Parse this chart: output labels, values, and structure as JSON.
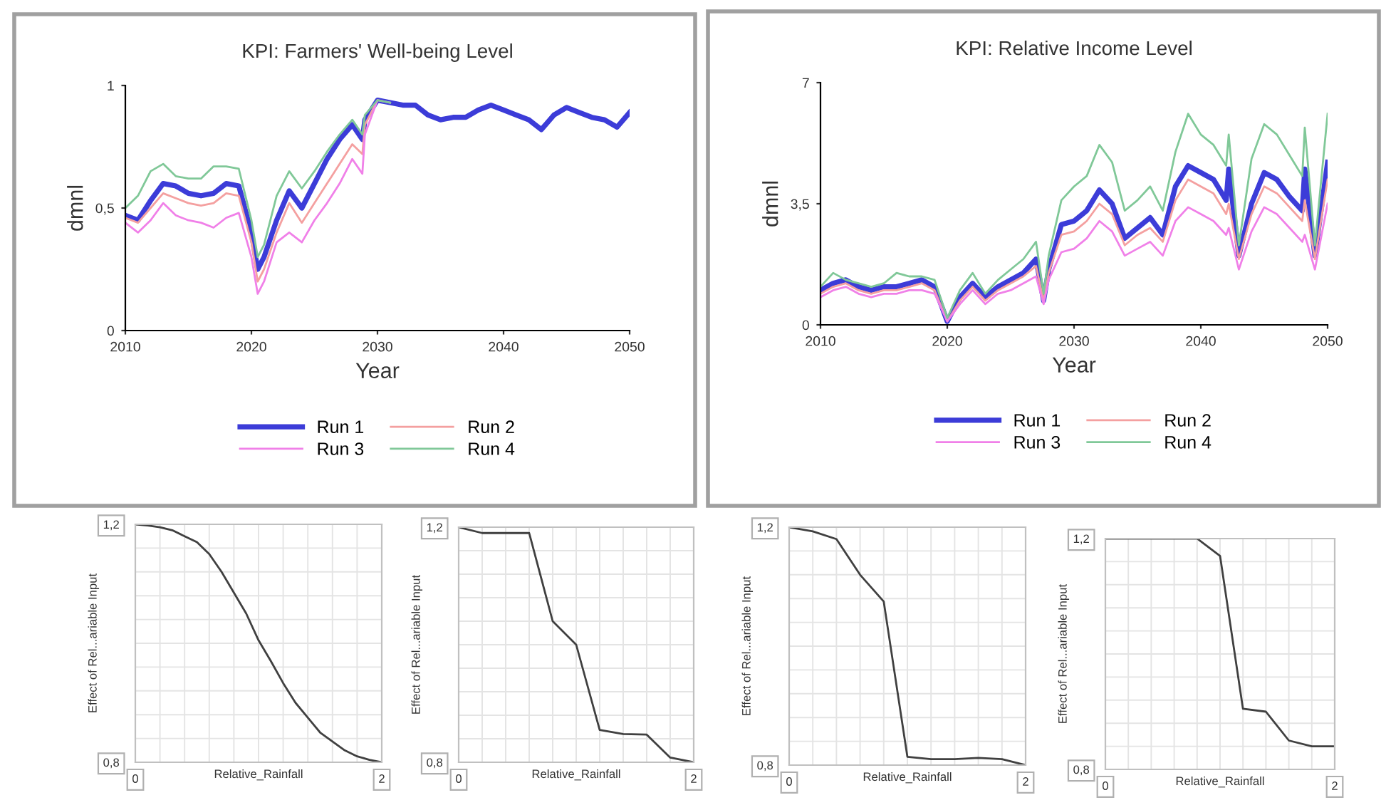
{
  "chart_data": [
    {
      "type": "line",
      "title": "KPI: Farmers' Well-being Level",
      "xlabel": "Year",
      "ylabel": "dmnl",
      "x": [
        2010,
        2011,
        2012,
        2013,
        2014,
        2015,
        2016,
        2017,
        2018,
        2019,
        2020,
        2020.5,
        2021,
        2022,
        2023,
        2024,
        2025,
        2026,
        2027,
        2028,
        2028.8,
        2029,
        2030,
        2031,
        2032,
        2033,
        2034,
        2035,
        2036,
        2037,
        2038,
        2039,
        2040,
        2041,
        2042,
        2043,
        2044,
        2045,
        2046,
        2047,
        2048,
        2049,
        2050
      ],
      "series": [
        {
          "name": "Run 1",
          "color": "#3c3cd8",
          "values": [
            0.47,
            0.45,
            0.53,
            0.6,
            0.59,
            0.56,
            0.55,
            0.56,
            0.6,
            0.59,
            0.4,
            0.25,
            0.3,
            0.45,
            0.57,
            0.5,
            0.6,
            0.7,
            0.78,
            0.84,
            0.78,
            0.86,
            0.94,
            0.93,
            0.92,
            0.92,
            0.88,
            0.86,
            0.87,
            0.87,
            0.9,
            0.92,
            0.9,
            0.88,
            0.86,
            0.82,
            0.88,
            0.91,
            0.89,
            0.87,
            0.86,
            0.83,
            0.89
          ]
        },
        {
          "name": "Run 2",
          "color": "#f4a0a0",
          "values": [
            0.46,
            0.44,
            0.5,
            0.56,
            0.54,
            0.52,
            0.51,
            0.52,
            0.56,
            0.55,
            0.36,
            0.2,
            0.25,
            0.4,
            0.52,
            0.44,
            0.52,
            0.6,
            0.68,
            0.76,
            0.72,
            0.84,
            0.94,
            null,
            null,
            null,
            null,
            null,
            null,
            null,
            null,
            null,
            null,
            null,
            null,
            null,
            null,
            null,
            null,
            null,
            null,
            null,
            null
          ]
        },
        {
          "name": "Run 3",
          "color": "#f080e8",
          "values": [
            0.44,
            0.4,
            0.45,
            0.52,
            0.47,
            0.45,
            0.44,
            0.42,
            0.46,
            0.48,
            0.3,
            0.15,
            0.2,
            0.36,
            0.4,
            0.36,
            0.45,
            0.52,
            0.6,
            0.7,
            0.64,
            0.8,
            0.94,
            0.93,
            null,
            null,
            null,
            null,
            null,
            null,
            null,
            null,
            null,
            null,
            null,
            null,
            null,
            null,
            null,
            null,
            null,
            null,
            null
          ]
        },
        {
          "name": "Run 4",
          "color": "#80c898",
          "values": [
            0.5,
            0.55,
            0.65,
            0.68,
            0.63,
            0.62,
            0.62,
            0.67,
            0.67,
            0.66,
            0.45,
            0.3,
            0.35,
            0.55,
            0.65,
            0.58,
            0.65,
            0.73,
            0.8,
            0.86,
            0.8,
            0.88,
            0.94,
            0.93,
            null,
            null,
            null,
            null,
            null,
            null,
            null,
            null,
            null,
            null,
            null,
            null,
            null,
            null,
            null,
            null,
            null,
            null,
            null
          ]
        }
      ],
      "xlim": [
        2010,
        2050
      ],
      "xticks": [
        2010,
        2020,
        2030,
        2040,
        2050
      ],
      "ylim": [
        0,
        1
      ],
      "yticks": [
        0,
        {
          "value": 0.5,
          "label": "0,5"
        },
        1
      ],
      "legend": "bottom",
      "grid": false
    },
    {
      "type": "line",
      "title": "KPI: Relative Income Level",
      "xlabel": "Year",
      "ylabel": "dmnl",
      "x": [
        2010,
        2011,
        2012,
        2013,
        2014,
        2015,
        2016,
        2017,
        2018,
        2019,
        2020,
        2021,
        2022,
        2023,
        2024,
        2025,
        2026,
        2027,
        2027.6,
        2028,
        2029,
        2030,
        2031,
        2032,
        2033,
        2034,
        2035,
        2036,
        2037,
        2038,
        2039,
        2040,
        2041,
        2042,
        2042.2,
        2043,
        2044,
        2045,
        2046,
        2047,
        2048,
        2048.2,
        2049,
        2050
      ],
      "series": [
        {
          "name": "Run 1",
          "color": "#3c3cd8",
          "values": [
            1.0,
            1.2,
            1.3,
            1.1,
            1.0,
            1.1,
            1.1,
            1.2,
            1.3,
            1.1,
            0.1,
            0.8,
            1.2,
            0.8,
            1.1,
            1.3,
            1.5,
            1.9,
            0.7,
            1.6,
            2.9,
            3.0,
            3.3,
            3.9,
            3.5,
            2.5,
            2.8,
            3.1,
            2.6,
            4.0,
            4.6,
            4.4,
            4.2,
            3.6,
            4.5,
            2.0,
            3.5,
            4.4,
            4.2,
            3.7,
            3.3,
            4.5,
            2.0,
            4.7
          ]
        },
        {
          "name": "Run 2",
          "color": "#f4a0a0",
          "values": [
            0.9,
            1.1,
            1.2,
            1.0,
            0.9,
            1.0,
            1.0,
            1.1,
            1.2,
            1.0,
            0.1,
            0.7,
            1.1,
            0.7,
            1.0,
            1.2,
            1.4,
            1.7,
            0.7,
            1.5,
            2.6,
            2.7,
            3.0,
            3.5,
            3.2,
            2.3,
            2.6,
            2.8,
            2.4,
            3.6,
            4.2,
            4.0,
            3.8,
            3.2,
            3.5,
            1.9,
            3.2,
            4.0,
            3.8,
            3.4,
            3.0,
            3.6,
            1.9,
            4.2
          ]
        },
        {
          "name": "Run 3",
          "color": "#f080e8",
          "values": [
            0.8,
            1.0,
            1.1,
            0.9,
            0.8,
            0.9,
            0.9,
            1.0,
            1.0,
            0.9,
            0.1,
            0.6,
            1.0,
            0.6,
            0.9,
            1.0,
            1.2,
            1.4,
            0.6,
            1.3,
            2.1,
            2.2,
            2.5,
            3.0,
            2.7,
            2.0,
            2.2,
            2.4,
            2.0,
            3.0,
            3.4,
            3.2,
            3.0,
            2.6,
            2.8,
            1.6,
            2.7,
            3.4,
            3.2,
            2.8,
            2.4,
            2.6,
            1.6,
            3.5
          ]
        },
        {
          "name": "Run 4",
          "color": "#80c898",
          "values": [
            1.1,
            1.5,
            1.3,
            1.2,
            1.1,
            1.2,
            1.5,
            1.4,
            1.4,
            1.3,
            0.2,
            1.0,
            1.5,
            0.9,
            1.3,
            1.6,
            1.9,
            2.4,
            0.9,
            2.0,
            3.6,
            4.0,
            4.3,
            5.2,
            4.7,
            3.3,
            3.6,
            4.0,
            3.3,
            5.0,
            6.1,
            5.5,
            5.2,
            4.6,
            5.5,
            2.3,
            4.8,
            5.8,
            5.5,
            4.9,
            4.3,
            5.7,
            2.3,
            6.1
          ]
        }
      ],
      "xlim": [
        2010,
        2050
      ],
      "xticks": [
        2010,
        2020,
        2030,
        2040,
        2050
      ],
      "ylim": [
        0,
        7
      ],
      "yticks": [
        0,
        {
          "value": 3.5,
          "label": "3,5"
        },
        7
      ],
      "legend": "bottom",
      "grid": false
    },
    {
      "type": "line",
      "xlabel": "Relative_Rainfall",
      "ylabel": "Effect of Rel...ariable Input",
      "x": [
        0,
        0.1,
        0.2,
        0.3,
        0.4,
        0.5,
        0.6,
        0.7,
        0.8,
        0.9,
        1.0,
        1.1,
        1.2,
        1.3,
        1.4,
        1.5,
        1.6,
        1.7,
        1.8,
        1.9,
        2.0
      ],
      "series": [
        {
          "color": "#404040",
          "values": [
            1.2,
            1.198,
            1.195,
            1.19,
            1.18,
            1.17,
            1.15,
            1.12,
            1.085,
            1.05,
            1.005,
            0.97,
            0.933,
            0.9,
            0.875,
            0.85,
            0.835,
            0.82,
            0.81,
            0.804,
            0.8
          ]
        }
      ],
      "xlim": [
        0,
        2
      ],
      "xticks": [
        0,
        {
          "value": 0.2,
          "label": null
        },
        {
          "value": 0.4,
          "label": null
        },
        {
          "value": 0.6,
          "label": null
        },
        {
          "value": 0.8,
          "label": null
        },
        {
          "value": 1.0,
          "label": null
        },
        {
          "value": 1.2,
          "label": null
        },
        {
          "value": 1.4,
          "label": null
        },
        {
          "value": 1.6,
          "label": null
        },
        {
          "value": 1.8,
          "label": null
        },
        2
      ],
      "ylim": [
        0.8,
        1.2
      ],
      "yticks": [
        {
          "value": 0.8,
          "label": "0,8"
        },
        {
          "value": 0.84,
          "label": null
        },
        {
          "value": 0.88,
          "label": null
        },
        {
          "value": 0.92,
          "label": null
        },
        {
          "value": 0.96,
          "label": null
        },
        {
          "value": 1.0,
          "label": null
        },
        {
          "value": 1.04,
          "label": null
        },
        {
          "value": 1.08,
          "label": null
        },
        {
          "value": 1.12,
          "label": null
        },
        {
          "value": 1.16,
          "label": null
        },
        {
          "value": 1.2,
          "label": "1,2"
        }
      ],
      "grid": true
    },
    {
      "type": "line",
      "xlabel": "Relative_Rainfall",
      "ylabel": "Effect of Rel...ariable Input",
      "x": [
        0,
        0.2,
        0.4,
        0.6,
        0.8,
        1.0,
        1.2,
        1.4,
        1.6,
        1.8,
        2.0
      ],
      "series": [
        {
          "color": "#404040",
          "values": [
            1.2,
            1.19,
            1.19,
            1.19,
            1.04,
            1.0,
            0.855,
            0.848,
            0.847,
            0.808,
            0.8
          ]
        }
      ],
      "xlim": [
        0,
        2
      ],
      "xticks": [
        0,
        {
          "value": 0.2,
          "label": null
        },
        {
          "value": 0.4,
          "label": null
        },
        {
          "value": 0.6,
          "label": null
        },
        {
          "value": 0.8,
          "label": null
        },
        {
          "value": 1.0,
          "label": null
        },
        {
          "value": 1.2,
          "label": null
        },
        {
          "value": 1.4,
          "label": null
        },
        {
          "value": 1.6,
          "label": null
        },
        {
          "value": 1.8,
          "label": null
        },
        2
      ],
      "ylim": [
        0.8,
        1.2
      ],
      "yticks": [
        {
          "value": 0.8,
          "label": "0,8"
        },
        {
          "value": 0.84,
          "label": null
        },
        {
          "value": 0.88,
          "label": null
        },
        {
          "value": 0.92,
          "label": null
        },
        {
          "value": 0.96,
          "label": null
        },
        {
          "value": 1.0,
          "label": null
        },
        {
          "value": 1.04,
          "label": null
        },
        {
          "value": 1.08,
          "label": null
        },
        {
          "value": 1.12,
          "label": null
        },
        {
          "value": 1.16,
          "label": null
        },
        {
          "value": 1.2,
          "label": "1,2"
        }
      ],
      "grid": true
    },
    {
      "type": "line",
      "xlabel": "Relative_Rainfall",
      "ylabel": "Effect of Rel...ariable Input",
      "x": [
        0,
        0.2,
        0.4,
        0.6,
        0.8,
        1.0,
        1.2,
        1.4,
        1.6,
        1.8,
        2.0
      ],
      "series": [
        {
          "color": "#404040",
          "values": [
            1.2,
            1.193,
            1.18,
            1.12,
            1.075,
            0.814,
            0.81,
            0.81,
            0.812,
            0.81,
            0.8
          ]
        }
      ],
      "xlim": [
        0,
        2
      ],
      "xticks": [
        0,
        {
          "value": 0.2,
          "label": null
        },
        {
          "value": 0.4,
          "label": null
        },
        {
          "value": 0.6,
          "label": null
        },
        {
          "value": 0.8,
          "label": null
        },
        {
          "value": 1.0,
          "label": null
        },
        {
          "value": 1.2,
          "label": null
        },
        {
          "value": 1.4,
          "label": null
        },
        {
          "value": 1.6,
          "label": null
        },
        {
          "value": 1.8,
          "label": null
        },
        2
      ],
      "ylim": [
        0.8,
        1.2
      ],
      "yticks": [
        {
          "value": 0.8,
          "label": "0,8"
        },
        {
          "value": 0.84,
          "label": null
        },
        {
          "value": 0.88,
          "label": null
        },
        {
          "value": 0.92,
          "label": null
        },
        {
          "value": 0.96,
          "label": null
        },
        {
          "value": 1.0,
          "label": null
        },
        {
          "value": 1.04,
          "label": null
        },
        {
          "value": 1.08,
          "label": null
        },
        {
          "value": 1.12,
          "label": null
        },
        {
          "value": 1.16,
          "label": null
        },
        {
          "value": 1.2,
          "label": "1,2"
        }
      ],
      "grid": true
    },
    {
      "type": "line",
      "xlabel": "Relative_Rainfall",
      "ylabel": "Effect of Rel...ariable Input",
      "x": [
        0,
        0.2,
        0.4,
        0.6,
        0.8,
        1.0,
        1.2,
        1.4,
        1.6,
        1.8,
        2.0
      ],
      "series": [
        {
          "color": "#404040",
          "values": [
            1.2,
            1.2,
            1.2,
            1.2,
            1.2,
            1.17,
            0.905,
            0.9,
            0.85,
            0.84,
            0.84
          ]
        }
      ],
      "xlim": [
        0,
        2
      ],
      "xticks": [
        0,
        {
          "value": 0.2,
          "label": null
        },
        {
          "value": 0.4,
          "label": null
        },
        {
          "value": 0.6,
          "label": null
        },
        {
          "value": 0.8,
          "label": null
        },
        {
          "value": 1.0,
          "label": null
        },
        {
          "value": 1.2,
          "label": null
        },
        {
          "value": 1.4,
          "label": null
        },
        {
          "value": 1.6,
          "label": null
        },
        {
          "value": 1.8,
          "label": null
        },
        2
      ],
      "ylim": [
        0.8,
        1.2
      ],
      "yticks": [
        {
          "value": 0.8,
          "label": "0,8"
        },
        {
          "value": 0.84,
          "label": null
        },
        {
          "value": 0.88,
          "label": null
        },
        {
          "value": 0.92,
          "label": null
        },
        {
          "value": 0.96,
          "label": null
        },
        {
          "value": 1.0,
          "label": null
        },
        {
          "value": 1.04,
          "label": null
        },
        {
          "value": 1.08,
          "label": null
        },
        {
          "value": 1.12,
          "label": null
        },
        {
          "value": 1.16,
          "label": null
        },
        {
          "value": 1.2,
          "label": "1,2"
        }
      ],
      "grid": true
    }
  ]
}
